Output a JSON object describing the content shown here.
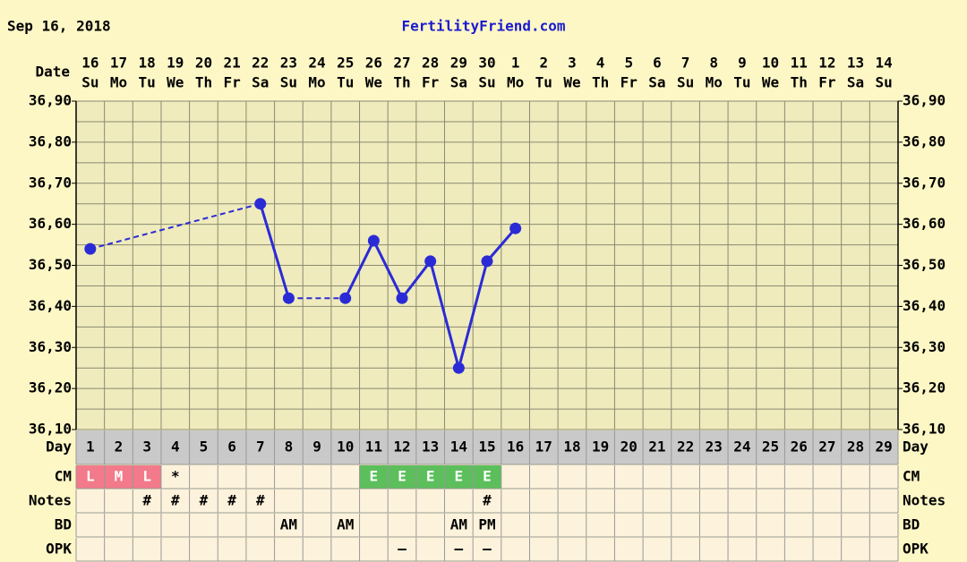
{
  "header": {
    "date": "Sep 16, 2018",
    "site": "FertilityFriend.com"
  },
  "chart_data": {
    "type": "line",
    "date_label": "Date",
    "categories": [
      "16",
      "17",
      "18",
      "19",
      "20",
      "21",
      "22",
      "23",
      "24",
      "25",
      "26",
      "27",
      "28",
      "29",
      "30",
      "1",
      "2",
      "3",
      "4",
      "5",
      "6",
      "7",
      "8",
      "9",
      "10",
      "11",
      "12",
      "13",
      "14"
    ],
    "weekdays": [
      "Su",
      "Mo",
      "Tu",
      "We",
      "Th",
      "Fr",
      "Sa",
      "Su",
      "Mo",
      "Tu",
      "We",
      "Th",
      "Fr",
      "Sa",
      "Su",
      "Mo",
      "Tu",
      "We",
      "Th",
      "Fr",
      "Sa",
      "Su",
      "Mo",
      "Tu",
      "We",
      "Th",
      "Fr",
      "Sa",
      "Su"
    ],
    "ylim": [
      36.1,
      36.9
    ],
    "yticks": [
      {
        "value": 36.9,
        "label": "36,90"
      },
      {
        "value": 36.8,
        "label": "36,80"
      },
      {
        "value": 36.7,
        "label": "36,70"
      },
      {
        "value": 36.6,
        "label": "36,60"
      },
      {
        "value": 36.5,
        "label": "36,50"
      },
      {
        "value": 36.4,
        "label": "36,40"
      },
      {
        "value": 36.3,
        "label": "36,30"
      },
      {
        "value": 36.2,
        "label": "36,20"
      },
      {
        "value": 36.1,
        "label": "36,10"
      }
    ],
    "grid": true,
    "series": [
      {
        "color": "#2b2bd6",
        "values": [
          36.54,
          null,
          null,
          null,
          null,
          null,
          36.65,
          36.42,
          null,
          36.42,
          36.56,
          36.42,
          36.51,
          36.25,
          36.51,
          36.59,
          null,
          null,
          null,
          null,
          null,
          null,
          null,
          null,
          null,
          null,
          null,
          null,
          null
        ]
      }
    ],
    "table": [
      {
        "label": "Day",
        "cells": [
          1,
          2,
          3,
          4,
          5,
          6,
          7,
          8,
          9,
          10,
          11,
          12,
          13,
          14,
          15,
          16,
          17,
          18,
          19,
          20,
          21,
          22,
          23,
          24,
          25,
          26,
          27,
          28,
          29
        ]
      },
      {
        "label": "CM",
        "cells": [
          "L",
          "M",
          "L",
          "*",
          null,
          null,
          null,
          null,
          null,
          null,
          "E",
          "E",
          "E",
          "E",
          "E",
          null,
          null,
          null,
          null,
          null,
          null,
          null,
          null,
          null,
          null,
          null,
          null,
          null,
          null
        ],
        "cell_colors": [
          "#f27a8a",
          "#f27a8a",
          "#f27a8a",
          null,
          null,
          null,
          null,
          null,
          null,
          null,
          "#5cbf5c",
          "#5cbf5c",
          "#5cbf5c",
          "#5cbf5c",
          "#5cbf5c",
          null,
          null,
          null,
          null,
          null,
          null,
          null,
          null,
          null,
          null,
          null,
          null,
          null,
          null
        ]
      },
      {
        "label": "Notes",
        "cells": [
          null,
          null,
          "#",
          "#",
          "#",
          "#",
          "#",
          null,
          null,
          null,
          null,
          null,
          null,
          null,
          "#",
          null,
          null,
          null,
          null,
          null,
          null,
          null,
          null,
          null,
          null,
          null,
          null,
          null,
          null
        ]
      },
      {
        "label": "BD",
        "cells": [
          null,
          null,
          null,
          null,
          null,
          null,
          null,
          "AM",
          null,
          "AM",
          null,
          null,
          null,
          "AM",
          "PM",
          null,
          null,
          null,
          null,
          null,
          null,
          null,
          null,
          null,
          null,
          null,
          null,
          null,
          null
        ]
      },
      {
        "label": "OPK",
        "cells": [
          null,
          null,
          null,
          null,
          null,
          null,
          null,
          null,
          null,
          null,
          null,
          "–",
          null,
          "–",
          "–",
          null,
          null,
          null,
          null,
          null,
          null,
          null,
          null,
          null,
          null,
          null,
          null,
          null,
          null
        ]
      }
    ]
  }
}
